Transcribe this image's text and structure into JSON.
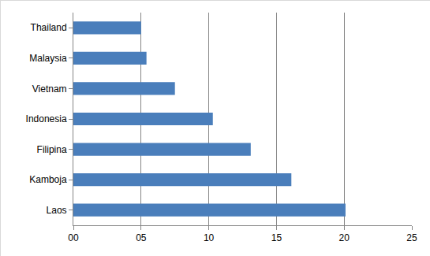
{
  "chart_data": {
    "type": "bar",
    "orientation": "horizontal",
    "categories": [
      "Laos",
      "Kamboja",
      "Filipina",
      "Indonesia",
      "Vietnam",
      "Malaysia",
      "Thailand"
    ],
    "values": [
      20.1,
      16.1,
      13.1,
      10.3,
      7.5,
      5.4,
      5.0
    ],
    "color": "#4a7ebb",
    "xlim": [
      0,
      25
    ],
    "xticks": [
      {
        "value": 0,
        "label": "00"
      },
      {
        "value": 5,
        "label": "05"
      },
      10,
      15,
      20,
      25
    ],
    "grid": true
  }
}
